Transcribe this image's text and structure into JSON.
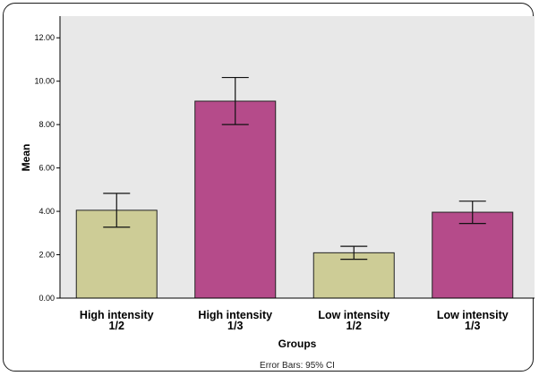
{
  "chart_data": {
    "type": "bar",
    "categories": [
      [
        "High intensity",
        "1/2"
      ],
      [
        "High intensity",
        "1/3"
      ],
      [
        "Low intensity",
        "1/2"
      ],
      [
        "Low intensity",
        "1/3"
      ]
    ],
    "values": [
      4.05,
      9.08,
      2.09,
      3.96
    ],
    "error_low": [
      3.27,
      8.0,
      1.79,
      3.44
    ],
    "error_high": [
      4.83,
      10.17,
      2.39,
      4.47
    ],
    "bar_colors": [
      "#cdcc96",
      "#b54b8a",
      "#cdcc96",
      "#b54b8a"
    ],
    "ylim": [
      0,
      13
    ],
    "yticks": [
      "0.00",
      "2.00",
      "4.00",
      "6.00",
      "8.00",
      "10.00",
      "12.00"
    ],
    "ylabel": "Mean",
    "xlabel": "Groups",
    "note": "Error Bars: 95% CI",
    "plot_background": "#e8e8e8",
    "grid": false
  }
}
